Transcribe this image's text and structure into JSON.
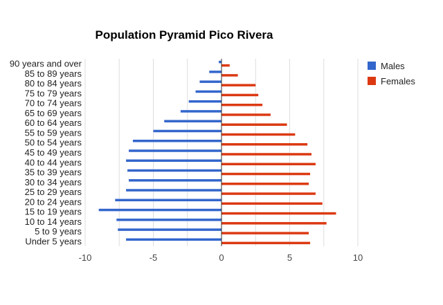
{
  "chart_data": {
    "type": "bar",
    "orientation": "horizontal",
    "title": "Population Pyramid Pico Rivera",
    "xlabel": "",
    "ylabel": "",
    "xlim": [
      -10,
      10
    ],
    "x_ticks": [
      "-10",
      "-5",
      "0",
      "5",
      "10"
    ],
    "grid": true,
    "legend_position": "right",
    "categories": [
      "90 years and over",
      "85 to 89 years",
      "80 to 84 years",
      "75 to 79 years",
      "70 to 74 years",
      "65 to 69 years",
      "60 to 64 years",
      "55 to 59 years",
      "50 to 54 years",
      "45 to 49 years",
      "40 to 44 years",
      "35 to 39 years",
      "30 to 34 years",
      "25 to 29 years",
      "20 to 24 years",
      "15 to 19 years",
      "10 to 14 years",
      "5 to 9 years",
      "Under 5 years"
    ],
    "series": [
      {
        "name": "Males",
        "color": "#3366cc",
        "values": [
          -0.2,
          -0.9,
          -1.6,
          -1.9,
          -2.4,
          -3.0,
          -4.2,
          -5.0,
          -6.5,
          -6.8,
          -7.0,
          -6.9,
          -6.8,
          -7.0,
          -7.8,
          -9.0,
          -7.7,
          -7.6,
          -7.0
        ]
      },
      {
        "name": "Females",
        "color": "#dc3912",
        "values": [
          0.6,
          1.2,
          2.5,
          2.7,
          3.0,
          3.6,
          4.8,
          5.4,
          6.3,
          6.6,
          6.9,
          6.5,
          6.4,
          6.9,
          7.4,
          8.4,
          7.7,
          6.4,
          6.5
        ]
      }
    ]
  }
}
